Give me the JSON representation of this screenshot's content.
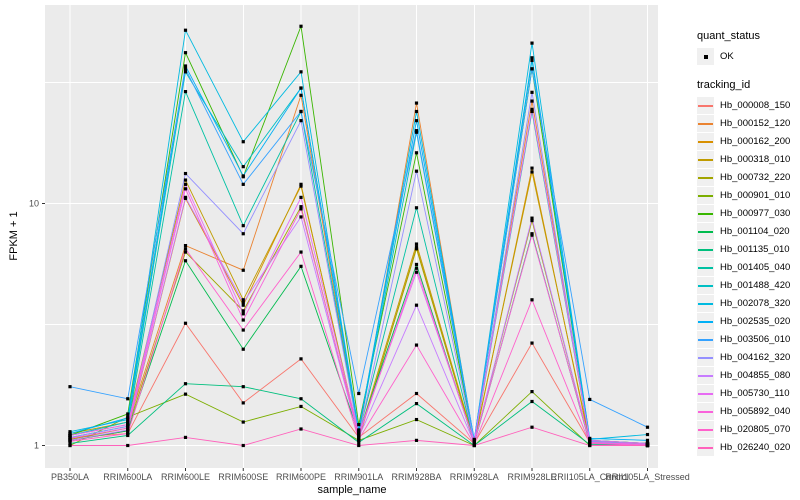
{
  "figure": {
    "background": "#FFFFFF",
    "panel_background": "#EBEBEB",
    "gridline_color": "#FFFFFF",
    "tick_color": "#333333",
    "tick_label_color": "#4D4D4D",
    "axis_title_color": "#000000"
  },
  "axes": {
    "x_title": "sample_name",
    "y_title": "FPKM + 1"
  },
  "legend": {
    "quant_status_title": "quant_status",
    "ok_label": "OK",
    "tracking_title": "tracking_id"
  },
  "chart_data": {
    "type": "line",
    "title": "",
    "xlabel": "sample_name",
    "ylabel": "FPKM + 1",
    "y_scale": "log10",
    "ylim": [
      0.81,
      66
    ],
    "grid": true,
    "legend_position": "right",
    "point_marker": {
      "shape": "square",
      "color": "#000000",
      "legend_label": "OK"
    },
    "y_ticks": [
      {
        "value": 1,
        "label": "1"
      },
      {
        "value": 10,
        "label": "10"
      }
    ],
    "y_minor_ticks": [
      3.1623,
      31.623
    ],
    "categories": [
      "PB350LA",
      "RRIM600LA",
      "RRIM600LE",
      "RRIM600SE",
      "RRIM600PE",
      "RRIM901LA",
      "RRIM928BA",
      "RRIM928LA",
      "RRIM928LE",
      "RRII105LA_Control",
      "RRII105LA_Stressed"
    ],
    "series": [
      {
        "name": "Hb_000008_150",
        "color": "#F8766D",
        "values": [
          1.08,
          1.12,
          3.2,
          1.5,
          2.28,
          1.08,
          1.64,
          1.02,
          2.65,
          1.03,
          1.0
        ]
      },
      {
        "name": "Hb_000152_120",
        "color": "#EA8331",
        "values": [
          1.1,
          1.22,
          6.7,
          5.3,
          28,
          1.1,
          26,
          1.03,
          26.5,
          1.04,
          1.02
        ]
      },
      {
        "name": "Hb_000162_200",
        "color": "#D89000",
        "values": [
          1.05,
          1.15,
          10.5,
          3.8,
          12,
          1.06,
          6.6,
          1.02,
          14,
          1.02,
          1.0
        ]
      },
      {
        "name": "Hb_000318_010",
        "color": "#C09B00",
        "values": [
          1.12,
          1.25,
          12.5,
          4.0,
          11.8,
          1.1,
          6.8,
          1.04,
          13.5,
          1.05,
          1.02
        ]
      },
      {
        "name": "Hb_000732_220",
        "color": "#A3A500",
        "values": [
          1.06,
          1.18,
          6.3,
          3.6,
          9.7,
          1.07,
          6.5,
          1.02,
          8.5,
          1.03,
          1.01
        ]
      },
      {
        "name": "Hb_000901_010",
        "color": "#7CAE00",
        "values": [
          1.0,
          1.31,
          1.63,
          1.25,
          1.45,
          1.05,
          1.28,
          1.0,
          1.67,
          1.0,
          1.0
        ]
      },
      {
        "name": "Hb_000977_030",
        "color": "#39B600",
        "values": [
          1.1,
          1.35,
          42,
          12.9,
          54,
          1.22,
          16.2,
          1.05,
          36,
          1.05,
          1.02
        ]
      },
      {
        "name": "Hb_001104_020",
        "color": "#00BB4E",
        "values": [
          1.05,
          1.15,
          5.8,
          2.5,
          5.5,
          1.12,
          5.6,
          1.02,
          7.5,
          1.02,
          1.0
        ]
      },
      {
        "name": "Hb_001135_010",
        "color": "#00BF7D",
        "values": [
          1.02,
          1.1,
          1.8,
          1.75,
          1.56,
          1.03,
          1.49,
          1.0,
          1.52,
          1.01,
          1.0
        ]
      },
      {
        "name": "Hb_001405_040",
        "color": "#00C1A3",
        "values": [
          1.08,
          1.2,
          29,
          8.1,
          24,
          1.12,
          9.6,
          1.03,
          24,
          1.04,
          1.01
        ]
      },
      {
        "name": "Hb_001488_420",
        "color": "#00BFC4",
        "values": [
          1.1,
          1.25,
          35,
          14.2,
          30,
          1.14,
          19.7,
          1.04,
          39,
          1.05,
          1.02
        ]
      },
      {
        "name": "Hb_002078_320",
        "color": "#00BAE0",
        "values": [
          1.14,
          1.28,
          52,
          18,
          35,
          1.15,
          24,
          1.05,
          46,
          1.06,
          1.11
        ]
      },
      {
        "name": "Hb_002535_020",
        "color": "#00B0F6",
        "values": [
          1.12,
          1.3,
          37,
          13,
          30,
          1.16,
          22,
          1.05,
          40,
          1.07,
          1.05
        ]
      },
      {
        "name": "Hb_003506_010",
        "color": "#35A2FF",
        "values": [
          1.75,
          1.56,
          36,
          12,
          24,
          1.64,
          20,
          1.06,
          36,
          1.55,
          1.19
        ]
      },
      {
        "name": "Hb_004162_320",
        "color": "#9590FF",
        "values": [
          1.08,
          1.2,
          13.3,
          7.5,
          22,
          1.1,
          13.6,
          1.03,
          28.8,
          1.04,
          1.01
        ]
      },
      {
        "name": "Hb_004855_080",
        "color": "#C77CFF",
        "values": [
          1.05,
          1.16,
          10.6,
          3.9,
          8.8,
          1.08,
          3.8,
          1.02,
          8.7,
          1.03,
          1.0
        ]
      },
      {
        "name": "Hb_005730_110",
        "color": "#E76BF3",
        "values": [
          1.1,
          1.22,
          12.0,
          3.5,
          10.6,
          1.12,
          5.2,
          1.04,
          24.5,
          1.05,
          1.02
        ]
      },
      {
        "name": "Hb_005892_040",
        "color": "#FA62DB",
        "values": [
          1.07,
          1.18,
          11.5,
          3.3,
          9.5,
          1.09,
          5.4,
          1.03,
          7.4,
          1.03,
          1.01
        ]
      },
      {
        "name": "Hb_020805_070",
        "color": "#FF61CC",
        "values": [
          1.04,
          1.12,
          6.5,
          3.0,
          6.3,
          1.06,
          2.6,
          1.01,
          4.0,
          1.02,
          1.0
        ]
      },
      {
        "name": "Hb_026240_020",
        "color": "#FF62BC",
        "values": [
          1.0,
          1.0,
          1.08,
          1.0,
          1.17,
          1.0,
          1.05,
          1.0,
          1.19,
          1.0,
          1.0
        ]
      }
    ]
  }
}
